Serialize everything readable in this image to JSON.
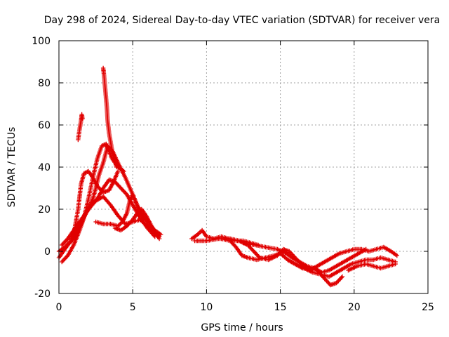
{
  "chart_data": {
    "type": "scatter",
    "title": "Day 298 of 2024, Sidereal Day-to-day VTEC variation (SDTVAR) for receiver vera",
    "xlabel": "GPS time / hours",
    "ylabel": "SDTVAR / TECUs",
    "xlim": [
      0,
      25
    ],
    "ylim": [
      -20,
      100
    ],
    "xticks": [
      0,
      5,
      10,
      15,
      20,
      25
    ],
    "yticks": [
      -20,
      0,
      20,
      40,
      60,
      80,
      100
    ],
    "grid": true,
    "marker": "+",
    "marker_color": "#e00000",
    "tracks": [
      {
        "name": "spike-short",
        "x": [
          1.3,
          1.4,
          1.5,
          1.55,
          1.6
        ],
        "y": [
          53,
          58,
          62,
          65,
          63
        ]
      },
      {
        "name": "spike-tall",
        "x": [
          3.0,
          3.05,
          3.1,
          3.15,
          3.2,
          3.25,
          3.3,
          3.4,
          3.5,
          3.6,
          3.7,
          3.8,
          3.9
        ],
        "y": [
          87,
          84,
          80,
          76,
          72,
          68,
          62,
          56,
          52,
          48,
          46,
          43,
          40
        ]
      },
      {
        "name": "arc-1",
        "x": [
          0.0,
          0.4,
          0.8,
          1.0,
          1.3,
          1.5,
          1.7,
          2.0,
          2.3,
          2.6,
          3.0,
          3.4,
          3.7,
          4.0
        ],
        "y": [
          0,
          2,
          5,
          8,
          20,
          32,
          37,
          38,
          35,
          31,
          28,
          29,
          33,
          38
        ]
      },
      {
        "name": "arc-2",
        "x": [
          0.2,
          0.6,
          1.0,
          1.5,
          2.0,
          2.3,
          2.5,
          2.7,
          3.0,
          3.3,
          3.6,
          4.0,
          4.5,
          5.0,
          5.4,
          5.8
        ],
        "y": [
          3,
          6,
          10,
          15,
          20,
          25,
          30,
          36,
          42,
          50,
          48,
          42,
          35,
          27,
          20,
          15
        ]
      },
      {
        "name": "arc-3",
        "x": [
          0.0,
          0.3,
          0.6,
          1.0,
          1.3,
          1.7,
          2.0,
          2.3,
          2.6,
          2.9,
          3.2,
          3.6,
          4.0,
          4.4
        ],
        "y": [
          -3,
          0,
          3,
          6,
          10,
          16,
          25,
          35,
          44,
          50,
          51,
          44,
          40,
          38
        ]
      },
      {
        "name": "arc-4",
        "x": [
          0.2,
          0.6,
          1.0,
          1.4,
          1.8,
          2.2,
          2.6,
          3.0,
          3.4,
          3.8,
          4.2,
          4.6,
          5.0,
          5.5,
          6.0,
          6.5
        ],
        "y": [
          -5,
          -2,
          3,
          10,
          18,
          22,
          25,
          30,
          34,
          33,
          30,
          27,
          22,
          16,
          11,
          7
        ]
      },
      {
        "name": "arc-5",
        "x": [
          1.0,
          1.5,
          2.0,
          2.5,
          3.0,
          3.5,
          4.0,
          4.5,
          5.0,
          5.5,
          6.0,
          6.5,
          6.8
        ],
        "y": [
          8,
          14,
          20,
          24,
          26,
          22,
          17,
          13,
          14,
          15,
          12,
          9,
          7
        ]
      },
      {
        "name": "arc-6",
        "x": [
          2.5,
          3.0,
          3.5,
          4.0,
          4.3,
          4.6,
          4.8,
          5.0,
          5.3,
          5.7,
          6.1,
          6.5,
          6.9
        ],
        "y": [
          14,
          13,
          13,
          12,
          14,
          18,
          24,
          27,
          22,
          17,
          13,
          10,
          8
        ]
      },
      {
        "name": "arc-7",
        "x": [
          3.8,
          4.2,
          4.6,
          5.0,
          5.3,
          5.6,
          5.9,
          6.2,
          6.5,
          6.8
        ],
        "y": [
          11,
          10,
          12,
          15,
          18,
          20,
          17,
          13,
          9,
          6
        ]
      },
      {
        "name": "arc-8",
        "x": [
          9.0,
          9.4,
          9.7,
          10.0,
          10.5,
          11.0,
          11.5,
          12.0,
          12.5,
          13.0,
          13.5
        ],
        "y": [
          6,
          8,
          10,
          7,
          6,
          7,
          6,
          5,
          5,
          4,
          3
        ]
      },
      {
        "name": "arc-9",
        "x": [
          9.2,
          10.0,
          10.8,
          11.6,
          12.2,
          12.8,
          13.2,
          13.6,
          14.2,
          14.8,
          15.2,
          15.6,
          16.0,
          16.4,
          16.8
        ],
        "y": [
          5,
          5,
          6,
          6,
          5,
          3,
          0,
          -3,
          -4,
          -2,
          1,
          0,
          -3,
          -6,
          -8
        ]
      },
      {
        "name": "arc-10",
        "x": [
          11.0,
          11.6,
          12.0,
          12.4,
          12.8,
          13.4,
          14.0,
          14.6,
          15.0,
          15.5,
          16.0,
          16.5,
          17.0,
          17.5,
          18.0,
          18.4,
          18.8,
          19.2
        ],
        "y": [
          6,
          5,
          2,
          -2,
          -3,
          -4,
          -3,
          -2,
          -1,
          -4,
          -6,
          -8,
          -8,
          -9,
          -13,
          -16,
          -15,
          -12
        ]
      },
      {
        "name": "arc-11",
        "x": [
          12.5,
          13.3,
          14.0,
          14.8,
          15.4,
          15.8,
          16.3,
          16.8,
          17.3,
          17.8,
          18.3,
          18.8,
          19.3,
          19.8,
          20.3,
          20.8
        ],
        "y": [
          4,
          3,
          2,
          1,
          -1,
          -3,
          -5,
          -7,
          -8,
          -10,
          -9,
          -7,
          -5,
          -3,
          -1,
          1
        ]
      },
      {
        "name": "arc-12",
        "x": [
          15.5,
          16.0,
          16.6,
          17.2,
          17.8,
          18.3,
          18.8,
          19.3,
          19.8,
          20.3,
          20.8,
          21.3,
          21.8,
          22.3,
          22.8
        ],
        "y": [
          -4,
          -6,
          -8,
          -10,
          -11,
          -12,
          -10,
          -8,
          -6,
          -5,
          -4,
          -4,
          -3,
          -4,
          -5
        ]
      },
      {
        "name": "arc-13",
        "x": [
          17.0,
          17.5,
          18.0,
          18.5,
          19.0,
          19.5,
          20.0,
          20.5,
          21.0,
          21.5,
          22.0,
          22.5,
          22.9
        ],
        "y": [
          -9,
          -7,
          -5,
          -3,
          -1,
          0,
          1,
          1,
          0,
          1,
          2,
          0,
          -2
        ]
      },
      {
        "name": "arc-14",
        "x": [
          19.6,
          20.2,
          20.8,
          21.3,
          21.8,
          22.3,
          22.8
        ],
        "y": [
          -9,
          -7,
          -6,
          -7,
          -8,
          -7,
          -6
        ]
      }
    ]
  }
}
